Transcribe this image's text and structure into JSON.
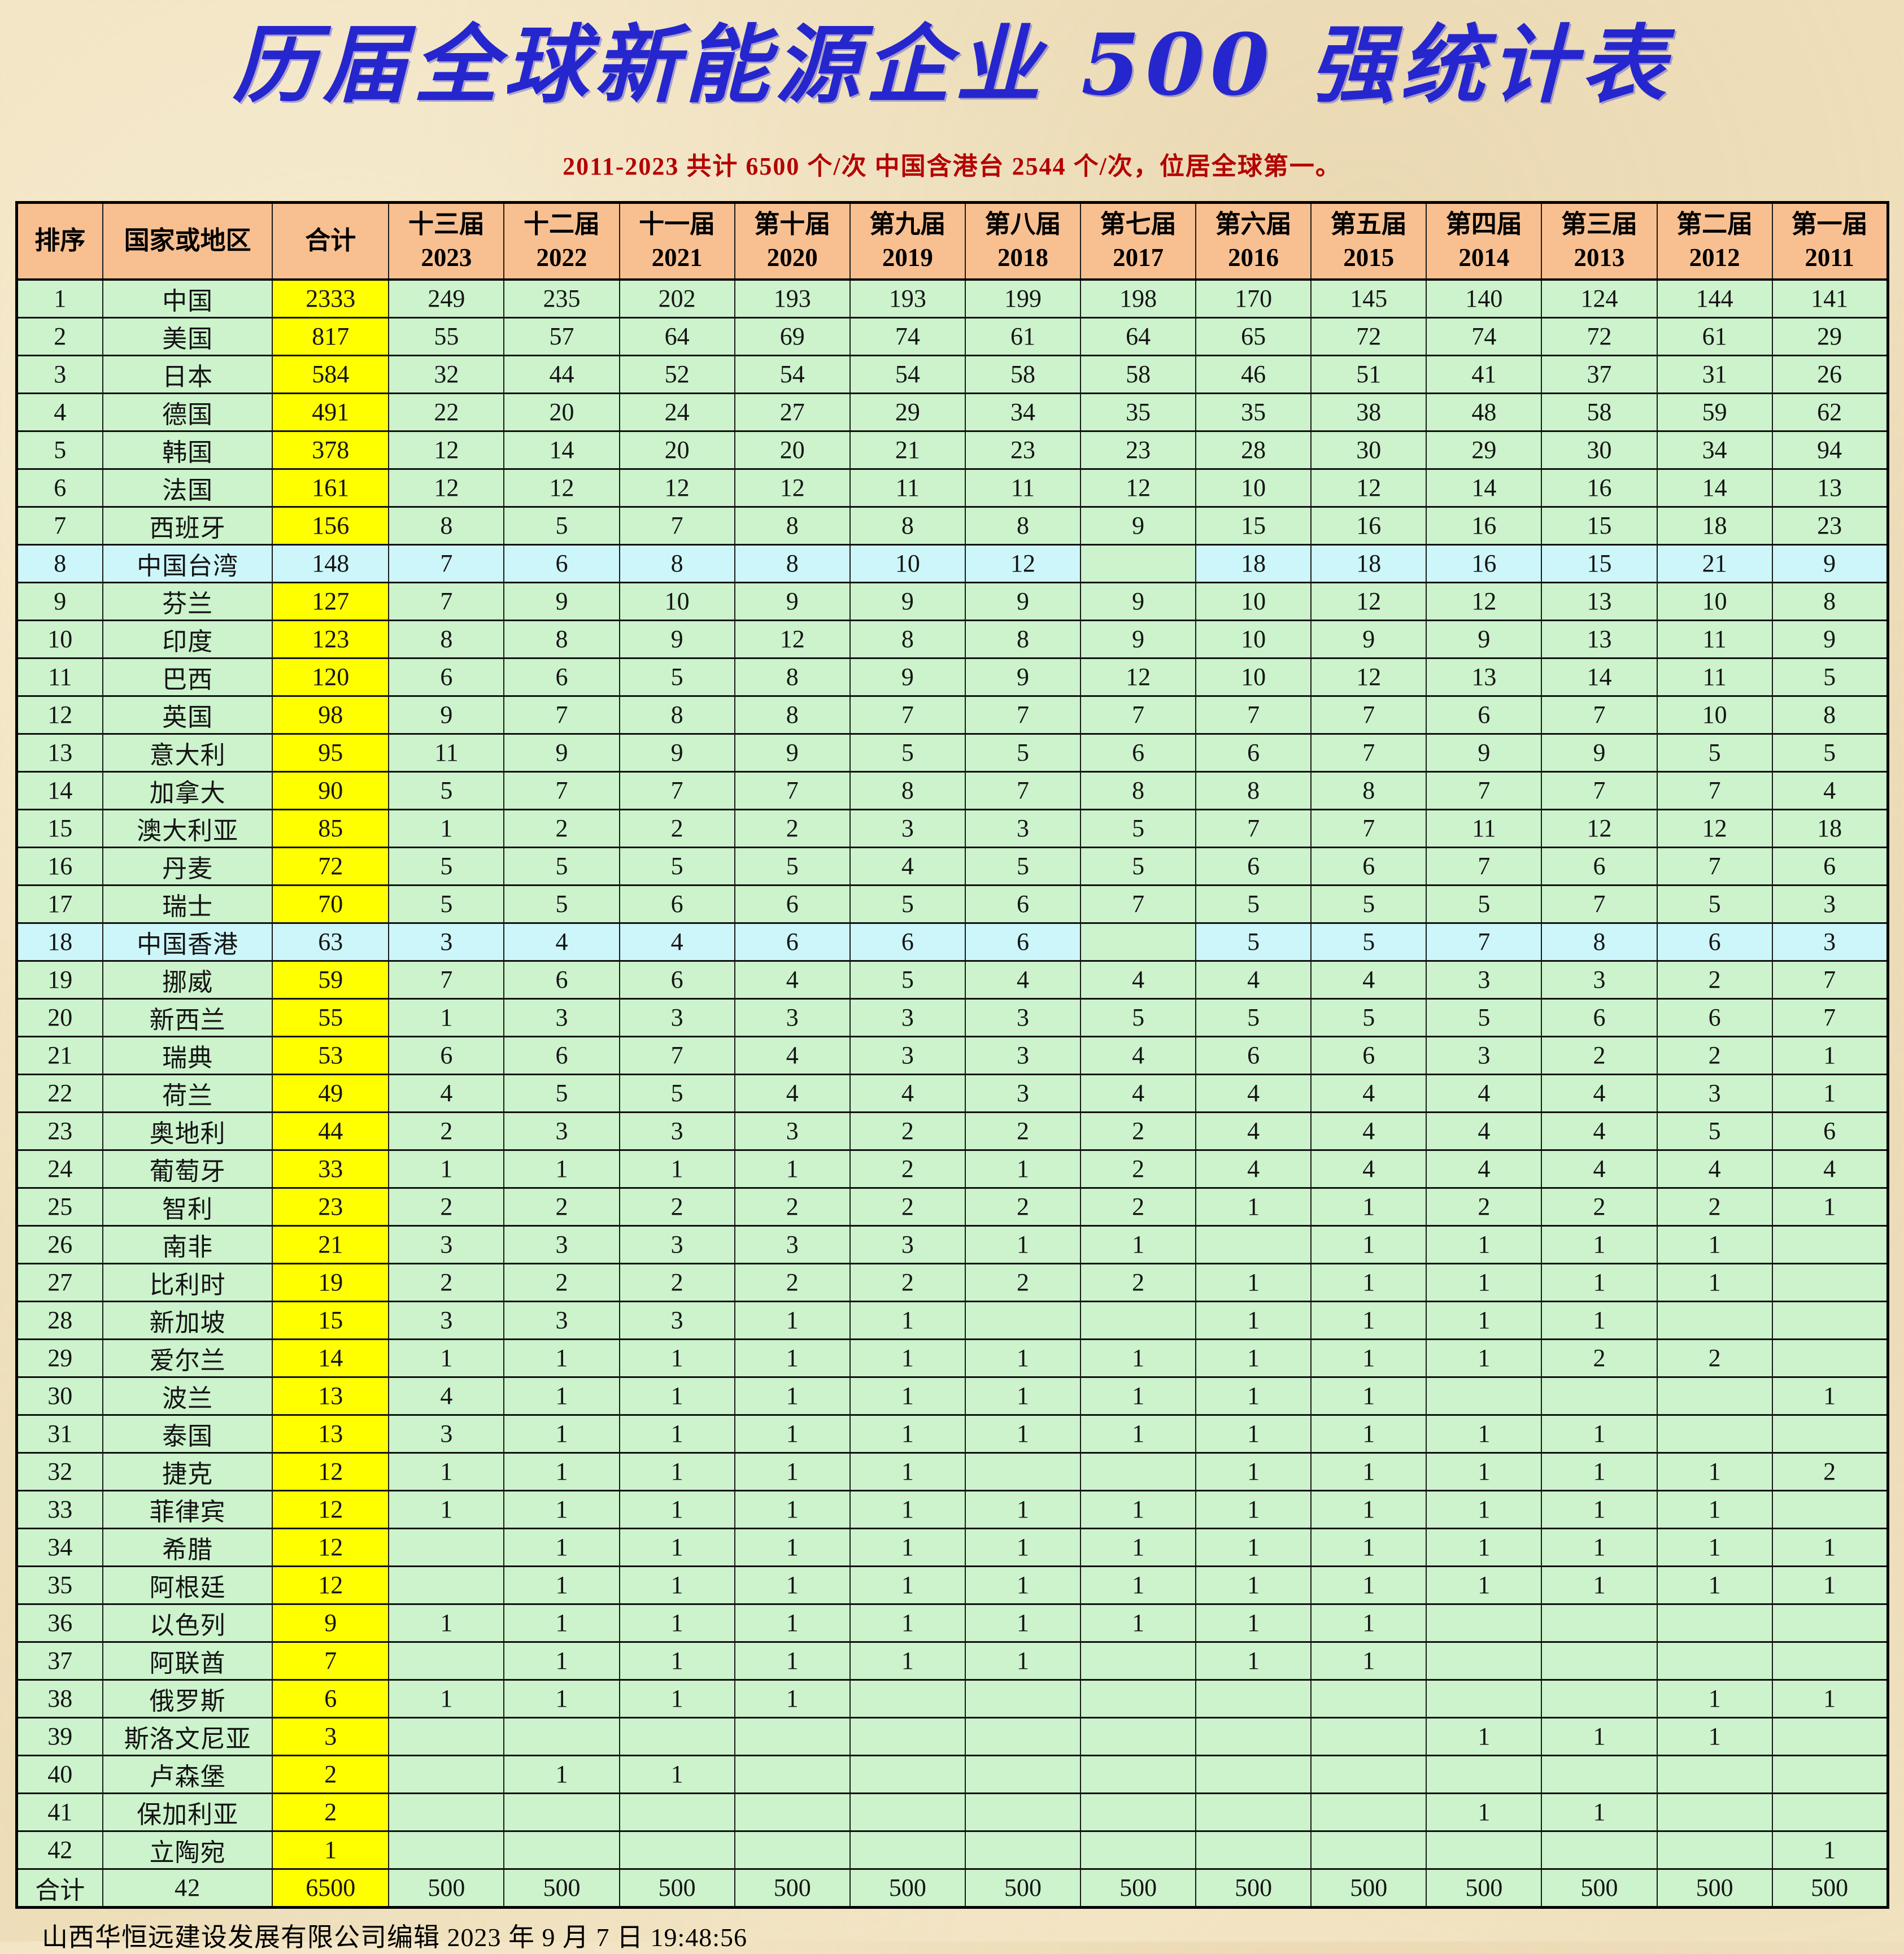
{
  "page": {
    "title": "历届全球新能源企业 500 强统计表",
    "subtitle": "2011-2023 共计 6500 个/次  中国含港台 2544 个/次，位居全球第一。",
    "footer": "山西华恒远建设发展有限公司编辑  2023 年 9 月 7 日 19:48:56"
  },
  "colors": {
    "title_blue": "#2626ce",
    "subtitle_red": "#b40000",
    "header_peach": "#f8c091",
    "cell_green": "#ccf3cc",
    "cell_cyan": "#cdf6fa",
    "total_yellow": "#ffff00"
  },
  "table": {
    "columns": [
      {
        "id": "rank",
        "line1": "排序",
        "line2": ""
      },
      {
        "id": "country",
        "line1": "国家或地区",
        "line2": ""
      },
      {
        "id": "total",
        "line1": "合计",
        "line2": ""
      },
      {
        "id": "2023",
        "line1": "十三届",
        "line2": "2023"
      },
      {
        "id": "2022",
        "line1": "十二届",
        "line2": "2022"
      },
      {
        "id": "2021",
        "line1": "十一届",
        "line2": "2021"
      },
      {
        "id": "2020",
        "line1": "第十届",
        "line2": "2020"
      },
      {
        "id": "2019",
        "line1": "第九届",
        "line2": "2019"
      },
      {
        "id": "2018",
        "line1": "第八届",
        "line2": "2018"
      },
      {
        "id": "2017",
        "line1": "第七届",
        "line2": "2017"
      },
      {
        "id": "2016",
        "line1": "第六届",
        "line2": "2016"
      },
      {
        "id": "2015",
        "line1": "第五届",
        "line2": "2015"
      },
      {
        "id": "2014",
        "line1": "第四届",
        "line2": "2014"
      },
      {
        "id": "2013",
        "line1": "第三届",
        "line2": "2013"
      },
      {
        "id": "2012",
        "line1": "第二届",
        "line2": "2012"
      },
      {
        "id": "2011",
        "line1": "第一届",
        "line2": "2011"
      }
    ],
    "rows": [
      {
        "rank": "1",
        "country": "中国",
        "total": "2333",
        "highlight": false,
        "values": [
          "249",
          "235",
          "202",
          "193",
          "193",
          "199",
          "198",
          "170",
          "145",
          "140",
          "124",
          "144",
          "141"
        ]
      },
      {
        "rank": "2",
        "country": "美国",
        "total": "817",
        "highlight": false,
        "values": [
          "55",
          "57",
          "64",
          "69",
          "74",
          "61",
          "64",
          "65",
          "72",
          "74",
          "72",
          "61",
          "29"
        ]
      },
      {
        "rank": "3",
        "country": "日本",
        "total": "584",
        "highlight": false,
        "values": [
          "32",
          "44",
          "52",
          "54",
          "54",
          "58",
          "58",
          "46",
          "51",
          "41",
          "37",
          "31",
          "26"
        ]
      },
      {
        "rank": "4",
        "country": "德国",
        "total": "491",
        "highlight": false,
        "values": [
          "22",
          "20",
          "24",
          "27",
          "29",
          "34",
          "35",
          "35",
          "38",
          "48",
          "58",
          "59",
          "62"
        ]
      },
      {
        "rank": "5",
        "country": "韩国",
        "total": "378",
        "highlight": false,
        "values": [
          "12",
          "14",
          "20",
          "20",
          "21",
          "23",
          "23",
          "28",
          "30",
          "29",
          "30",
          "34",
          "94"
        ]
      },
      {
        "rank": "6",
        "country": "法国",
        "total": "161",
        "highlight": false,
        "values": [
          "12",
          "12",
          "12",
          "12",
          "11",
          "11",
          "12",
          "10",
          "12",
          "14",
          "16",
          "14",
          "13"
        ]
      },
      {
        "rank": "7",
        "country": "西班牙",
        "total": "156",
        "highlight": false,
        "values": [
          "8",
          "5",
          "7",
          "8",
          "8",
          "8",
          "9",
          "15",
          "16",
          "16",
          "15",
          "18",
          "23"
        ]
      },
      {
        "rank": "8",
        "country": "中国台湾",
        "total": "148",
        "highlight": true,
        "values": [
          "7",
          "6",
          "8",
          "8",
          "10",
          "12",
          "",
          "18",
          "18",
          "16",
          "15",
          "21",
          "9"
        ]
      },
      {
        "rank": "9",
        "country": "芬兰",
        "total": "127",
        "highlight": false,
        "values": [
          "7",
          "9",
          "10",
          "9",
          "9",
          "9",
          "9",
          "10",
          "12",
          "12",
          "13",
          "10",
          "8"
        ]
      },
      {
        "rank": "10",
        "country": "印度",
        "total": "123",
        "highlight": false,
        "values": [
          "8",
          "8",
          "9",
          "12",
          "8",
          "8",
          "9",
          "10",
          "9",
          "9",
          "13",
          "11",
          "9"
        ]
      },
      {
        "rank": "11",
        "country": "巴西",
        "total": "120",
        "highlight": false,
        "values": [
          "6",
          "6",
          "5",
          "8",
          "9",
          "9",
          "12",
          "10",
          "12",
          "13",
          "14",
          "11",
          "5"
        ]
      },
      {
        "rank": "12",
        "country": "英国",
        "total": "98",
        "highlight": false,
        "values": [
          "9",
          "7",
          "8",
          "8",
          "7",
          "7",
          "7",
          "7",
          "7",
          "6",
          "7",
          "10",
          "8"
        ]
      },
      {
        "rank": "13",
        "country": "意大利",
        "total": "95",
        "highlight": false,
        "values": [
          "11",
          "9",
          "9",
          "9",
          "5",
          "5",
          "6",
          "6",
          "7",
          "9",
          "9",
          "5",
          "5"
        ]
      },
      {
        "rank": "14",
        "country": "加拿大",
        "total": "90",
        "highlight": false,
        "values": [
          "5",
          "7",
          "7",
          "7",
          "8",
          "7",
          "8",
          "8",
          "8",
          "7",
          "7",
          "7",
          "4"
        ]
      },
      {
        "rank": "15",
        "country": "澳大利亚",
        "total": "85",
        "highlight": false,
        "values": [
          "1",
          "2",
          "2",
          "2",
          "3",
          "3",
          "5",
          "7",
          "7",
          "11",
          "12",
          "12",
          "18"
        ]
      },
      {
        "rank": "16",
        "country": "丹麦",
        "total": "72",
        "highlight": false,
        "values": [
          "5",
          "5",
          "5",
          "5",
          "4",
          "5",
          "5",
          "6",
          "6",
          "7",
          "6",
          "7",
          "6"
        ]
      },
      {
        "rank": "17",
        "country": "瑞士",
        "total": "70",
        "highlight": false,
        "values": [
          "5",
          "5",
          "6",
          "6",
          "5",
          "6",
          "7",
          "5",
          "5",
          "5",
          "7",
          "5",
          "3"
        ]
      },
      {
        "rank": "18",
        "country": "中国香港",
        "total": "63",
        "highlight": true,
        "values": [
          "3",
          "4",
          "4",
          "6",
          "6",
          "6",
          "",
          "5",
          "5",
          "7",
          "8",
          "6",
          "3"
        ]
      },
      {
        "rank": "19",
        "country": "挪威",
        "total": "59",
        "highlight": false,
        "values": [
          "7",
          "6",
          "6",
          "4",
          "5",
          "4",
          "4",
          "4",
          "4",
          "3",
          "3",
          "2",
          "7"
        ]
      },
      {
        "rank": "20",
        "country": "新西兰",
        "total": "55",
        "highlight": false,
        "values": [
          "1",
          "3",
          "3",
          "3",
          "3",
          "3",
          "5",
          "5",
          "5",
          "5",
          "6",
          "6",
          "7"
        ]
      },
      {
        "rank": "21",
        "country": "瑞典",
        "total": "53",
        "highlight": false,
        "values": [
          "6",
          "6",
          "7",
          "4",
          "3",
          "3",
          "4",
          "6",
          "6",
          "3",
          "2",
          "2",
          "1"
        ]
      },
      {
        "rank": "22",
        "country": "荷兰",
        "total": "49",
        "highlight": false,
        "values": [
          "4",
          "5",
          "5",
          "4",
          "4",
          "3",
          "4",
          "4",
          "4",
          "4",
          "4",
          "3",
          "1"
        ]
      },
      {
        "rank": "23",
        "country": "奥地利",
        "total": "44",
        "highlight": false,
        "values": [
          "2",
          "3",
          "3",
          "3",
          "2",
          "2",
          "2",
          "4",
          "4",
          "4",
          "4",
          "5",
          "6"
        ]
      },
      {
        "rank": "24",
        "country": "葡萄牙",
        "total": "33",
        "highlight": false,
        "values": [
          "1",
          "1",
          "1",
          "1",
          "2",
          "1",
          "2",
          "4",
          "4",
          "4",
          "4",
          "4",
          "4"
        ]
      },
      {
        "rank": "25",
        "country": "智利",
        "total": "23",
        "highlight": false,
        "values": [
          "2",
          "2",
          "2",
          "2",
          "2",
          "2",
          "2",
          "1",
          "1",
          "2",
          "2",
          "2",
          "1"
        ]
      },
      {
        "rank": "26",
        "country": "南非",
        "total": "21",
        "highlight": false,
        "values": [
          "3",
          "3",
          "3",
          "3",
          "3",
          "1",
          "1",
          "",
          "1",
          "1",
          "1",
          "1",
          ""
        ]
      },
      {
        "rank": "27",
        "country": "比利时",
        "total": "19",
        "highlight": false,
        "values": [
          "2",
          "2",
          "2",
          "2",
          "2",
          "2",
          "2",
          "1",
          "1",
          "1",
          "1",
          "1",
          ""
        ]
      },
      {
        "rank": "28",
        "country": "新加坡",
        "total": "15",
        "highlight": false,
        "values": [
          "3",
          "3",
          "3",
          "1",
          "1",
          "",
          "",
          "1",
          "1",
          "1",
          "1",
          "",
          ""
        ]
      },
      {
        "rank": "29",
        "country": "爱尔兰",
        "total": "14",
        "highlight": false,
        "values": [
          "1",
          "1",
          "1",
          "1",
          "1",
          "1",
          "1",
          "1",
          "1",
          "1",
          "2",
          "2",
          ""
        ]
      },
      {
        "rank": "30",
        "country": "波兰",
        "total": "13",
        "highlight": false,
        "values": [
          "4",
          "1",
          "1",
          "1",
          "1",
          "1",
          "1",
          "1",
          "1",
          "",
          "",
          "",
          "1"
        ]
      },
      {
        "rank": "31",
        "country": "泰国",
        "total": "13",
        "highlight": false,
        "values": [
          "3",
          "1",
          "1",
          "1",
          "1",
          "1",
          "1",
          "1",
          "1",
          "1",
          "1",
          "",
          ""
        ]
      },
      {
        "rank": "32",
        "country": "捷克",
        "total": "12",
        "highlight": false,
        "values": [
          "1",
          "1",
          "1",
          "1",
          "1",
          "",
          "",
          "1",
          "1",
          "1",
          "1",
          "1",
          "2"
        ]
      },
      {
        "rank": "33",
        "country": "菲律宾",
        "total": "12",
        "highlight": false,
        "values": [
          "1",
          "1",
          "1",
          "1",
          "1",
          "1",
          "1",
          "1",
          "1",
          "1",
          "1",
          "1",
          ""
        ]
      },
      {
        "rank": "34",
        "country": "希腊",
        "total": "12",
        "highlight": false,
        "values": [
          "",
          "1",
          "1",
          "1",
          "1",
          "1",
          "1",
          "1",
          "1",
          "1",
          "1",
          "1",
          "1"
        ]
      },
      {
        "rank": "35",
        "country": "阿根廷",
        "total": "12",
        "highlight": false,
        "values": [
          "",
          "1",
          "1",
          "1",
          "1",
          "1",
          "1",
          "1",
          "1",
          "1",
          "1",
          "1",
          "1"
        ]
      },
      {
        "rank": "36",
        "country": "以色列",
        "total": "9",
        "highlight": false,
        "values": [
          "1",
          "1",
          "1",
          "1",
          "1",
          "1",
          "1",
          "1",
          "1",
          "",
          "",
          "",
          ""
        ]
      },
      {
        "rank": "37",
        "country": "阿联酋",
        "total": "7",
        "highlight": false,
        "values": [
          "",
          "1",
          "1",
          "1",
          "1",
          "1",
          "",
          "1",
          "1",
          "",
          "",
          "",
          ""
        ]
      },
      {
        "rank": "38",
        "country": "俄罗斯",
        "total": "6",
        "highlight": false,
        "values": [
          "1",
          "1",
          "1",
          "1",
          "",
          "",
          "",
          "",
          "",
          "",
          "",
          "1",
          "1"
        ]
      },
      {
        "rank": "39",
        "country": "斯洛文尼亚",
        "total": "3",
        "highlight": false,
        "values": [
          "",
          "",
          "",
          "",
          "",
          "",
          "",
          "",
          "",
          "1",
          "1",
          "1",
          ""
        ]
      },
      {
        "rank": "40",
        "country": "卢森堡",
        "total": "2",
        "highlight": false,
        "values": [
          "",
          "1",
          "1",
          "",
          "",
          "",
          "",
          "",
          "",
          "",
          "",
          "",
          ""
        ]
      },
      {
        "rank": "41",
        "country": "保加利亚",
        "total": "2",
        "highlight": false,
        "values": [
          "",
          "",
          "",
          "",
          "",
          "",
          "",
          "",
          "",
          "1",
          "1",
          "",
          ""
        ]
      },
      {
        "rank": "42",
        "country": "立陶宛",
        "total": "1",
        "highlight": false,
        "values": [
          "",
          "",
          "",
          "",
          "",
          "",
          "",
          "",
          "",
          "",
          "",
          "",
          "1"
        ]
      }
    ],
    "total_row": {
      "rank": "合计",
      "country": "42",
      "total": "6500",
      "values": [
        "500",
        "500",
        "500",
        "500",
        "500",
        "500",
        "500",
        "500",
        "500",
        "500",
        "500",
        "500",
        "500"
      ]
    }
  }
}
